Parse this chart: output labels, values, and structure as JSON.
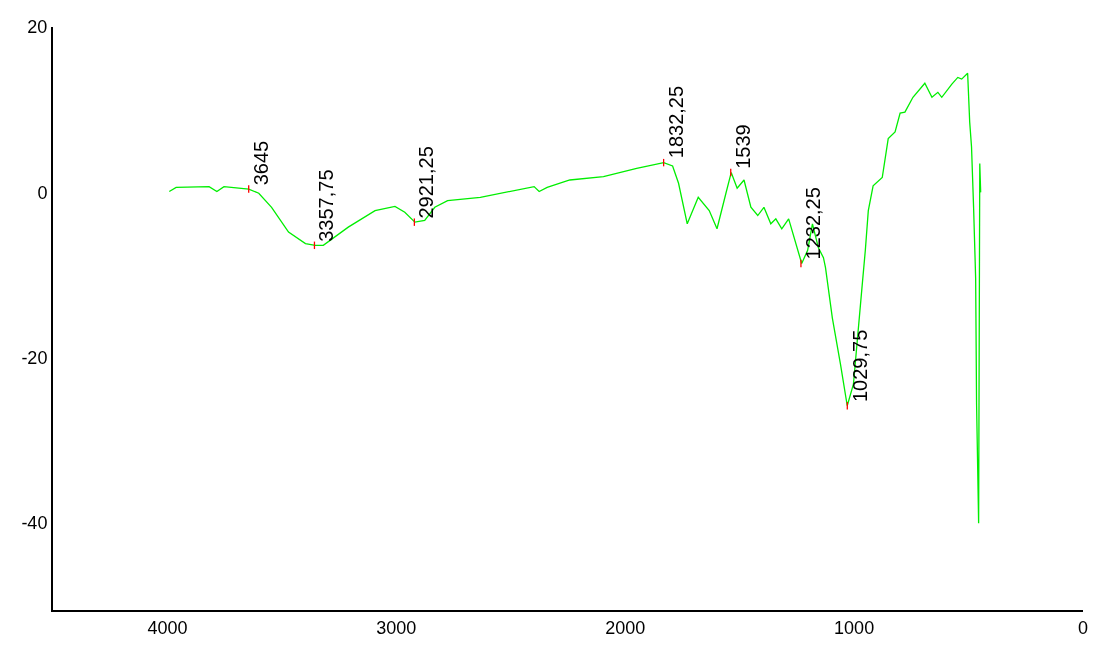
{
  "chart_data": {
    "type": "line",
    "x": [
      3992,
      3962,
      3818,
      3784,
      3753,
      3645,
      3601,
      3545,
      3471,
      3397,
      3354,
      3319,
      3210,
      3093,
      3006,
      2963,
      2919,
      2876,
      2832,
      2776,
      2633,
      2398,
      2376,
      2341,
      2242,
      2095,
      1950,
      1832,
      1793,
      1767,
      1729,
      1681,
      1633,
      1599,
      1560,
      1537,
      1511,
      1481,
      1451,
      1421,
      1394,
      1364,
      1342,
      1316,
      1286,
      1229,
      1203,
      1182,
      1156,
      1134,
      1125,
      1095,
      1060,
      1030,
      1003,
      964,
      951,
      938,
      917,
      877,
      851,
      821,
      799,
      778,
      743,
      691,
      660,
      634,
      617,
      573,
      547,
      530,
      504,
      495,
      487,
      478,
      469,
      465,
      456,
      451,
      447
    ],
    "series": [
      {
        "color": "#00ee00",
        "values": [
          0.1,
          0.6,
          0.7,
          0.1,
          0.7,
          0.4,
          -0.1,
          -1.8,
          -4.8,
          -6.2,
          -6.4,
          -6.4,
          -4.2,
          -2.2,
          -1.7,
          -2.4,
          -3.6,
          -3.4,
          -1.8,
          -1.0,
          -0.6,
          0.7,
          0.1,
          0.6,
          1.5,
          1.9,
          2.9,
          3.6,
          3.2,
          1.1,
          -3.8,
          -0.6,
          -2.2,
          -4.4,
          -0.1,
          2.4,
          0.5,
          1.5,
          -1.8,
          -2.8,
          -1.8,
          -3.8,
          -3.2,
          -4.4,
          -3.2,
          -8.6,
          -7.0,
          -3.8,
          -6.7,
          -7.9,
          -9.1,
          -15.2,
          -20.7,
          -25.8,
          -23.2,
          -11.0,
          -7.0,
          -2.2,
          0.8,
          1.8,
          6.5,
          7.3,
          9.6,
          9.7,
          11.5,
          13.2,
          11.5,
          12.1,
          11.5,
          13.1,
          13.9,
          13.7,
          14.4,
          8.5,
          5.5,
          -1.8,
          -10.4,
          -25.6,
          -40.0,
          3.5,
          0.0
        ]
      }
    ],
    "xlim": [
      4500,
      0
    ],
    "xticks": [
      4000,
      3000,
      2000,
      1000,
      0
    ],
    "ylim": [
      -50.5,
      20
    ],
    "yticks": [
      20,
      0,
      -20,
      -40
    ],
    "marker": "none",
    "line_style": "solid",
    "annotations": [
      {
        "text": "3645",
        "x": 3645,
        "y": 0.4
      },
      {
        "text": "3357,75",
        "x": 3357.75,
        "y": -6.4
      },
      {
        "text": "2921,25",
        "x": 2921.25,
        "y": -3.6
      },
      {
        "text": "1832,25",
        "x": 1832.25,
        "y": 3.6
      },
      {
        "text": "1539",
        "x": 1539,
        "y": 2.4
      },
      {
        "text": "1232,25",
        "x": 1232.25,
        "y": -8.6
      },
      {
        "text": "1029,75",
        "x": 1029.75,
        "y": -25.8
      }
    ]
  }
}
